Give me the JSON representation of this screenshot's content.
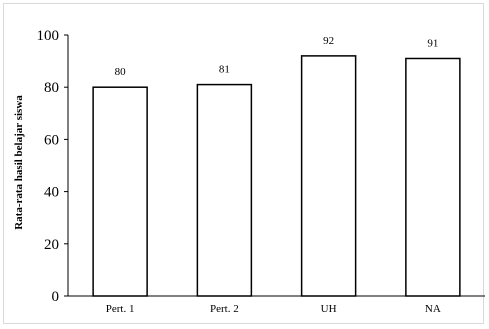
{
  "chart_data": {
    "type": "bar",
    "categories": [
      "Pert. 1",
      "Pert. 2",
      "UH",
      "NA"
    ],
    "values": [
      80,
      81,
      92,
      91
    ],
    "data_labels": [
      "80",
      "81",
      "92",
      "91"
    ],
    "title": "",
    "xlabel": "",
    "ylabel": "Rata-rata hasil belajar siswa",
    "ylim": [
      0,
      100
    ],
    "yticks": [
      0,
      20,
      40,
      60,
      80,
      100
    ],
    "grid": false,
    "legend": "none",
    "colors": {
      "bar_fill": "#ffffff",
      "bar_stroke": "#000000",
      "axis": "#000000"
    }
  }
}
